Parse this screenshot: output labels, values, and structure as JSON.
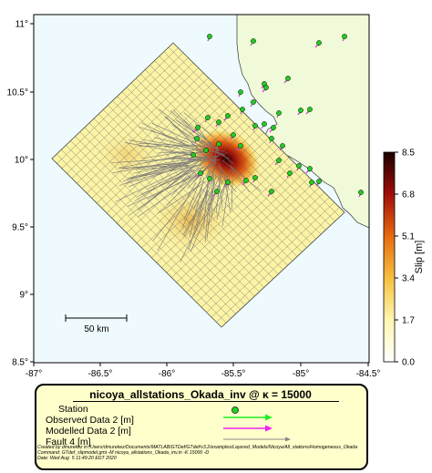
{
  "map": {
    "lon_ticks": [
      "-87°",
      "-86.5°",
      "-86°",
      "-85.5°",
      "-85°",
      "-84.5°"
    ],
    "lat_ticks": [
      "11°",
      "10.5°",
      "10°",
      "9.5°",
      "9°",
      "8.5°"
    ],
    "lon_range": [
      -87,
      -84.5
    ],
    "lat_range": [
      8.5,
      11.1
    ],
    "scale_bar_label": "50 km",
    "colors": {
      "sea": "#eefafd",
      "land": "#f0fad8",
      "coast": "#333333",
      "grid": "#555555",
      "station": "#22cc22",
      "observed": "#22ee22",
      "modelled": "#ee22ee",
      "fault": "#888888"
    }
  },
  "colorbar": {
    "label": "Slip [m]",
    "ticks": [
      "8.5",
      "6.8",
      "5.1",
      "3.4",
      "1.7",
      "0.0"
    ],
    "range": [
      0,
      8.5
    ]
  },
  "legend": {
    "title": "nicoya_allstations_Okada_inv @ κ = 15000",
    "rows": [
      {
        "label": "Station",
        "icon": "station-dot"
      },
      {
        "label": "Observed Data 2 [m]",
        "icon": "green-arrow"
      },
      {
        "label": "Modelled Data 2 [m]",
        "icon": "magenta-arrow"
      },
      {
        "label": "Fault 4 [m]",
        "icon": "gray-arrow"
      }
    ],
    "credits": [
      "Created by dmurekez in /Users/dmurekez/Documents/MATLAB/GTDef/GTdef/v3.2/examples/Layered_Models/Nicoya/All_stations/Homogeneous_Okada",
      "Command: GTdef_slipmodel.gmt -M nicoya_allstations_Okada_inv.in -K 15000 -D",
      "Date: Wed Aug  5 11:49:20 EDT 2020"
    ]
  }
}
